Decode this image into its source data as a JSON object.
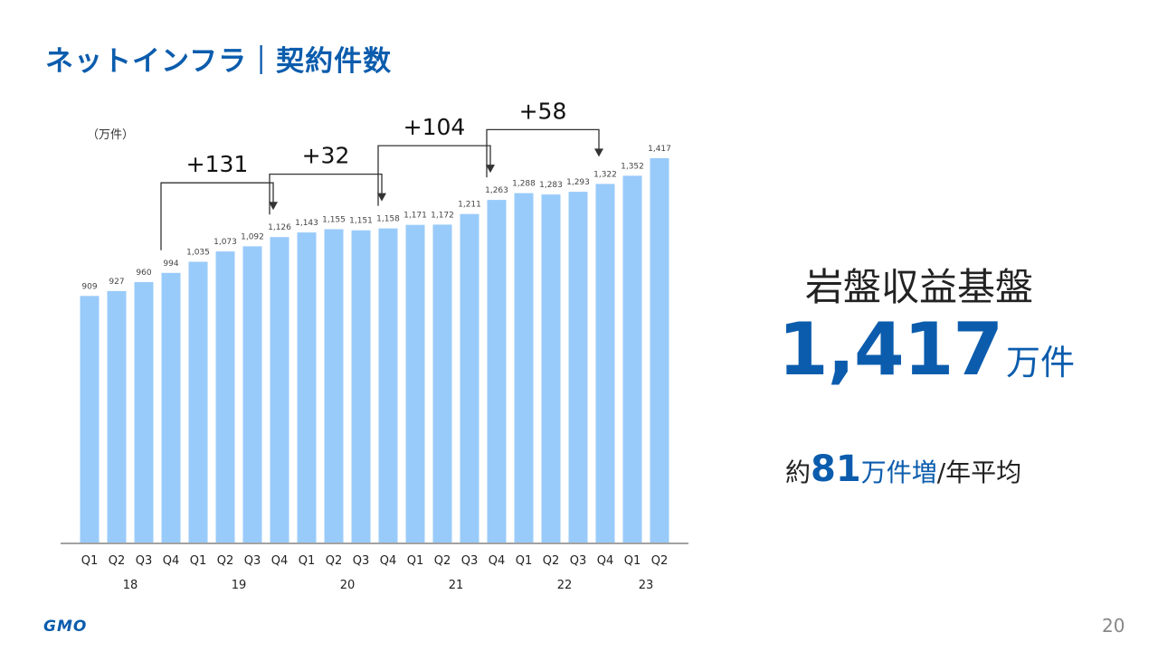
{
  "header": {
    "title": "ネットインフラ｜契約件数"
  },
  "chart_data": {
    "type": "bar",
    "unit_label": "（万件）",
    "categories": [
      "Q1",
      "Q2",
      "Q3",
      "Q4",
      "Q1",
      "Q2",
      "Q3",
      "Q4",
      "Q1",
      "Q2",
      "Q3",
      "Q4",
      "Q1",
      "Q2",
      "Q3",
      "Q4",
      "Q1",
      "Q2",
      "Q3",
      "Q4",
      "Q1",
      "Q2"
    ],
    "years": [
      "18",
      "19",
      "20",
      "21",
      "22",
      "23"
    ],
    "values": [
      909,
      927,
      960,
      994,
      1035,
      1073,
      1092,
      1126,
      1143,
      1155,
      1151,
      1158,
      1171,
      1172,
      1211,
      1263,
      1288,
      1283,
      1293,
      1322,
      1352,
      1417
    ],
    "value_labels": [
      "909",
      "927",
      "960",
      "994",
      "1,035",
      "1,073",
      "1,092",
      "1,126",
      "1,143",
      "1,155",
      "1,151",
      "1,158",
      "1,171",
      "1,172",
      "1,211",
      "1,263",
      "1,288",
      "1,283",
      "1,293",
      "1,322",
      "1,352",
      "1,417"
    ],
    "ylim": [
      0,
      1600
    ],
    "grid": false,
    "bar_color": "#99cbfa",
    "annotations": [
      {
        "label": "+131",
        "from_index": 3,
        "to_index": 7
      },
      {
        "label": "+32",
        "from_index": 7,
        "to_index": 11
      },
      {
        "label": "+104",
        "from_index": 11,
        "to_index": 15
      },
      {
        "label": "+58",
        "from_index": 15,
        "to_index": 19
      }
    ]
  },
  "kpi": {
    "label": "岩盤収益基盤",
    "value": "1,417",
    "unit": "万件",
    "sub_prefix": "約",
    "sub_number": "81",
    "sub_unit": "万件増",
    "sub_suffix": "/年平均"
  },
  "footer": {
    "logo": "GMO",
    "page_number": "20"
  }
}
